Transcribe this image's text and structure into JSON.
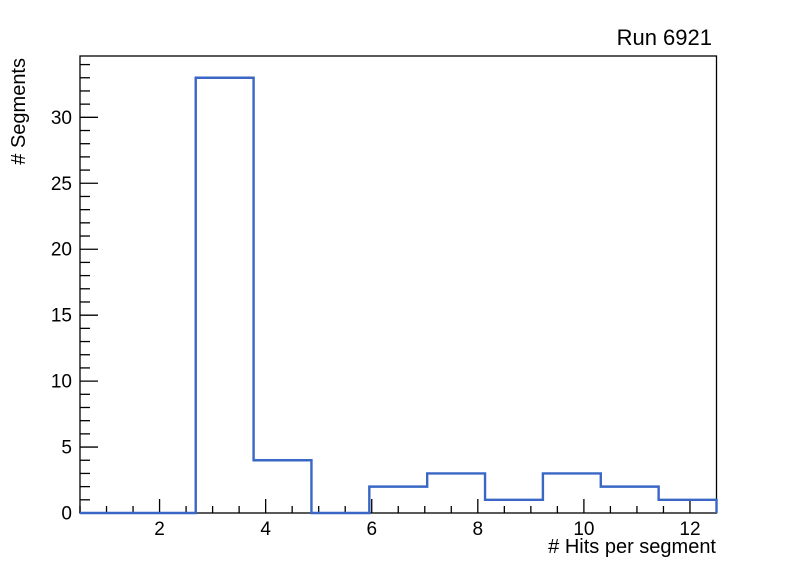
{
  "chart_data": {
    "type": "histogram-step",
    "title": "Run 6921",
    "xlabel": "# Hits per segment",
    "ylabel": "# Segments",
    "xlim": [
      0.5,
      12.5
    ],
    "ylim": [
      0,
      34.65
    ],
    "n_bins": 11,
    "bin_edges": [
      0.5,
      1.5909,
      2.6818,
      3.7727,
      4.8636,
      5.9545,
      7.0455,
      8.1364,
      9.2273,
      10.3182,
      11.4091,
      12.5
    ],
    "counts": [
      0,
      0,
      33,
      4,
      0,
      2,
      3,
      1,
      3,
      2,
      1
    ],
    "x_major_ticks": [
      2,
      4,
      6,
      8,
      10,
      12
    ],
    "x_minor_step": 0.5,
    "y_major_ticks": [
      0,
      5,
      10,
      15,
      20,
      25,
      30
    ],
    "y_minor_step": 1,
    "grid": false,
    "legend": null,
    "colors": {
      "line": "#3a67c6",
      "frame": "#000000",
      "background": "#ffffff"
    }
  }
}
